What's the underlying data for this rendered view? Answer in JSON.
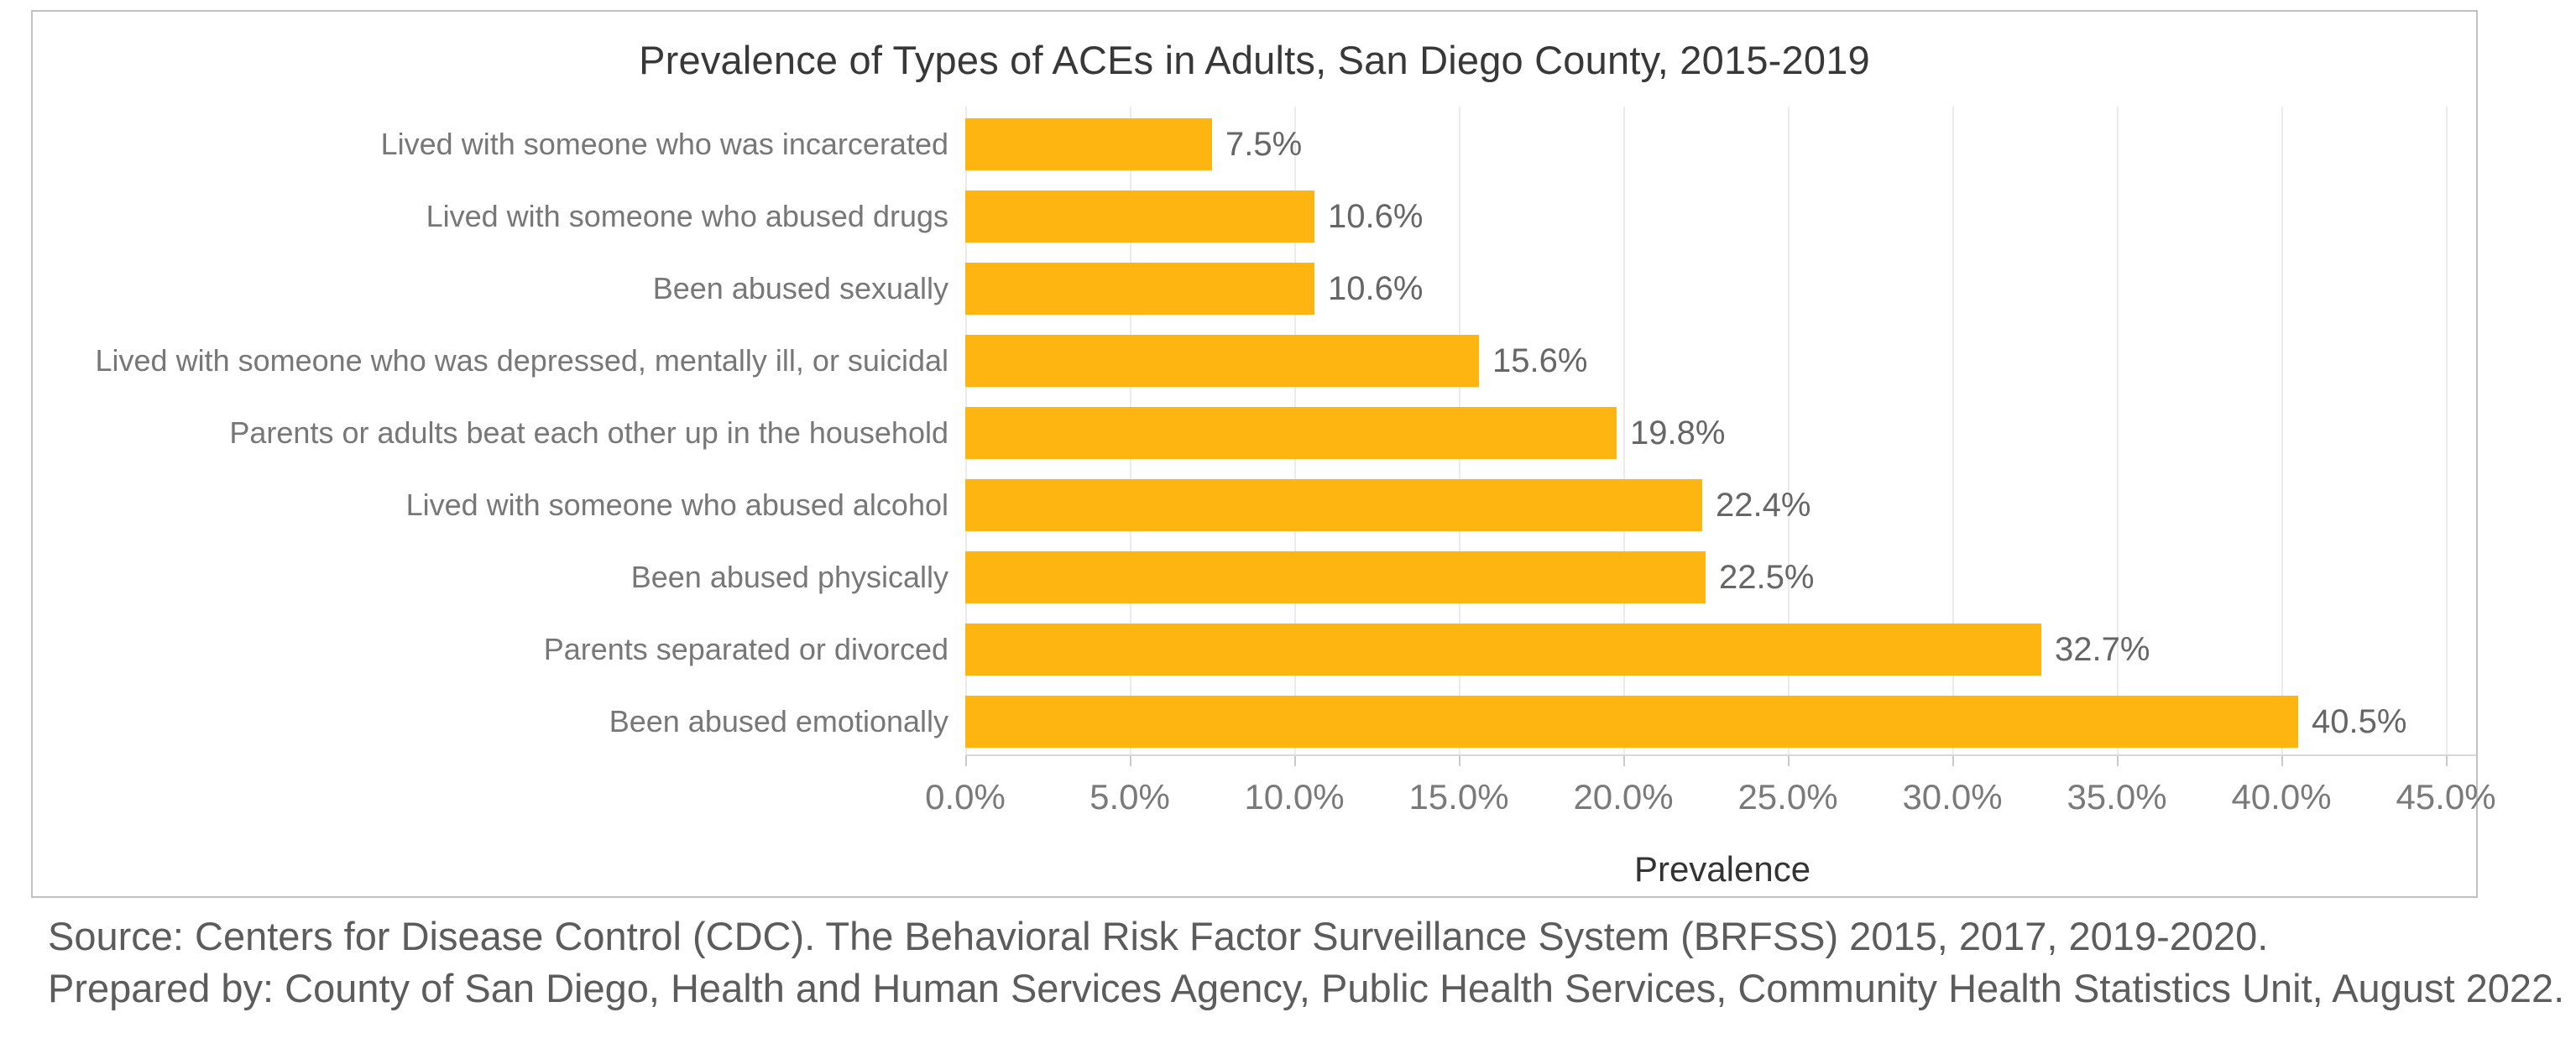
{
  "chart_data": {
    "type": "bar",
    "orientation": "horizontal",
    "title": "Prevalence of Types of ACEs in Adults, San Diego County, 2015-2019",
    "categories": [
      "Lived with someone who was incarcerated",
      "Lived with someone who abused drugs",
      "Been abused sexually",
      "Lived with someone who was depressed, mentally ill, or suicidal",
      "Parents or adults beat each other up in the household",
      "Lived with someone who abused alcohol",
      "Been abused physically",
      "Parents separated or divorced",
      "Been abused emotionally"
    ],
    "values": [
      7.5,
      10.6,
      10.6,
      15.6,
      19.8,
      22.4,
      22.5,
      32.7,
      40.5
    ],
    "value_labels": [
      "7.5%",
      "10.6%",
      "10.6%",
      "15.6%",
      "19.8%",
      "22.4%",
      "22.5%",
      "32.7%",
      "40.5%"
    ],
    "xlabel": "Prevalence",
    "x_ticks": [
      "0.0%",
      "5.0%",
      "10.0%",
      "15.0%",
      "20.0%",
      "25.0%",
      "30.0%",
      "35.0%",
      "40.0%",
      "45.0%"
    ],
    "xlim": [
      0,
      45
    ],
    "bar_color": "#FFB511",
    "grid": true,
    "legend": false
  },
  "footer": {
    "source_line": "Source: Centers for Disease Control (CDC). The Behavioral Risk Factor Surveillance System (BRFSS) 2015, 2017, 2019-2020.",
    "prepared_line": "Prepared by: County of San Diego, Health and Human Services Agency, Public Health Services, Community Health Statistics Unit, August 2022."
  }
}
